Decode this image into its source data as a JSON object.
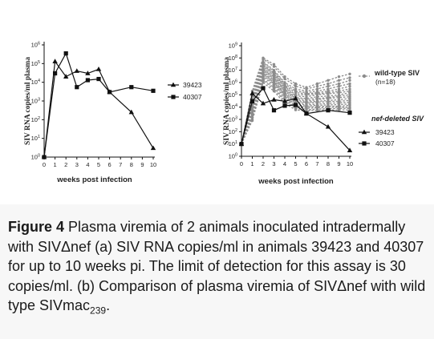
{
  "chart_data": [
    {
      "type": "line",
      "panel": "a",
      "ylabel": "SIV RNA copies/ml plasma",
      "xlabel": "weeks post infection",
      "y_scale": "log",
      "ylim": [
        1,
        1000000
      ],
      "y_tick_exponents": [
        0,
        1,
        2,
        3,
        4,
        5,
        6
      ],
      "x_ticks": [
        0,
        1,
        2,
        3,
        4,
        5,
        6,
        7,
        8,
        9,
        10
      ],
      "xlim": [
        0,
        10
      ],
      "legend_position": "right",
      "series": [
        {
          "name": "39423",
          "marker": "triangle",
          "x": [
            0,
            1,
            2,
            3,
            4,
            5,
            6,
            8,
            10
          ],
          "y": [
            1,
            130000,
            20000,
            40000,
            30000,
            50000,
            3000,
            250,
            3
          ]
        },
        {
          "name": "40307",
          "marker": "square",
          "x": [
            0,
            1,
            2,
            3,
            4,
            5,
            6,
            8,
            10
          ],
          "y": [
            1,
            30000,
            350000,
            5500,
            13000,
            15000,
            3000,
            5500,
            3500
          ]
        }
      ]
    },
    {
      "type": "line",
      "panel": "b",
      "ylabel": "SIV RNA copies/ml plasma",
      "xlabel": "weeks post infection",
      "y_scale": "log",
      "ylim": [
        1,
        1000000000
      ],
      "y_tick_exponents": [
        0,
        1,
        2,
        3,
        4,
        5,
        6,
        7,
        8,
        9
      ],
      "x_ticks": [
        0,
        1,
        2,
        3,
        4,
        5,
        6,
        7,
        8,
        9,
        10
      ],
      "xlim": [
        0,
        10
      ],
      "legend_position": "right",
      "legend_groups": [
        {
          "title": "wild-type SIV",
          "subtitle": "(n=18)"
        },
        {
          "title": "nef-deleted SIV"
        }
      ],
      "wild_type_group": {
        "name": "wild-type SIV",
        "x": [
          0,
          1,
          2,
          3,
          4,
          5,
          6,
          7,
          8,
          9,
          10
        ],
        "note": "18 individual grey dashed traces",
        "series": [
          [
            10,
            200000,
            100000000,
            30000000,
            3000000,
            800000,
            400000,
            800000,
            1500000,
            3000000,
            5000000
          ],
          [
            10,
            100000,
            80000000,
            20000000,
            2000000,
            500000,
            300000,
            500000,
            800000,
            1500000,
            2500000
          ],
          [
            10,
            50000,
            50000000,
            10000000,
            1000000,
            300000,
            200000,
            300000,
            500000,
            800000,
            1500000
          ],
          [
            10,
            40000,
            40000000,
            8000000,
            800000,
            200000,
            150000,
            200000,
            300000,
            500000,
            800000
          ],
          [
            10,
            30000,
            30000000,
            6000000,
            600000,
            150000,
            120000,
            150000,
            200000,
            300000,
            500000
          ],
          [
            10,
            20000,
            25000000,
            5000000,
            500000,
            100000,
            100000,
            120000,
            150000,
            200000,
            300000
          ],
          [
            10,
            15000,
            20000000,
            4000000,
            400000,
            80000,
            70000,
            100000,
            120000,
            150000,
            200000
          ],
          [
            10,
            10000,
            15000000,
            3000000,
            300000,
            60000,
            50000,
            70000,
            80000,
            100000,
            150000
          ],
          [
            10,
            8000,
            12000000,
            2500000,
            250000,
            50000,
            40000,
            50000,
            60000,
            80000,
            100000
          ],
          [
            10,
            6000,
            10000000,
            2000000,
            200000,
            40000,
            30000,
            40000,
            50000,
            60000,
            70000
          ],
          [
            10,
            5000,
            8000000,
            1500000,
            150000,
            30000,
            25000,
            30000,
            35000,
            40000,
            50000
          ],
          [
            10,
            4000,
            6000000,
            1200000,
            120000,
            25000,
            20000,
            25000,
            28000,
            30000,
            35000
          ],
          [
            10,
            3000,
            5000000,
            1000000,
            100000,
            20000,
            15000,
            18000,
            20000,
            22000,
            25000
          ],
          [
            10,
            2500,
            4000000,
            800000,
            80000,
            15000,
            12000,
            14000,
            15000,
            16000,
            18000
          ],
          [
            10,
            2000,
            3000000,
            600000,
            60000,
            12000,
            10000,
            11000,
            12000,
            12000,
            14000
          ],
          [
            10,
            1500,
            2000000,
            400000,
            40000,
            10000,
            8000,
            9000,
            9500,
            10000,
            10000
          ],
          [
            10,
            1000,
            1500000,
            300000,
            30000,
            8000,
            6000,
            7000,
            7500,
            8000,
            8000
          ],
          [
            10,
            800,
            1000000,
            200000,
            20000,
            6000,
            5000,
            5500,
            6000,
            6000,
            6000
          ]
        ]
      },
      "series": [
        {
          "name": "39423",
          "marker": "triangle",
          "x": [
            0,
            1,
            2,
            3,
            4,
            5,
            6,
            8,
            10
          ],
          "y": [
            10,
            130000,
            20000,
            40000,
            30000,
            50000,
            3000,
            250,
            3
          ]
        },
        {
          "name": "40307",
          "marker": "square",
          "x": [
            0,
            1,
            2,
            3,
            4,
            5,
            6,
            8,
            10
          ],
          "y": [
            10,
            30000,
            350000,
            5500,
            13000,
            15000,
            3000,
            5500,
            3500
          ]
        }
      ]
    }
  ],
  "caption": {
    "label": "Figure 4",
    "text_part1": " Plasma viremia of 2 animals inoculated intradermally with SIVΔnef (a) SIV RNA copies/ml in animals 39423 and 40307 for up to 10 weeks pi. The limit of detection for this assay is 30 copies/ml. (b) Comparison of plasma viremia of SIVΔnef with wild type SIVmac",
    "subscript": "239",
    "text_part2": "."
  },
  "colors": {
    "line": "#111111",
    "wild_type": "#8c8c8c",
    "caption_bg": "#f7f7f7"
  }
}
